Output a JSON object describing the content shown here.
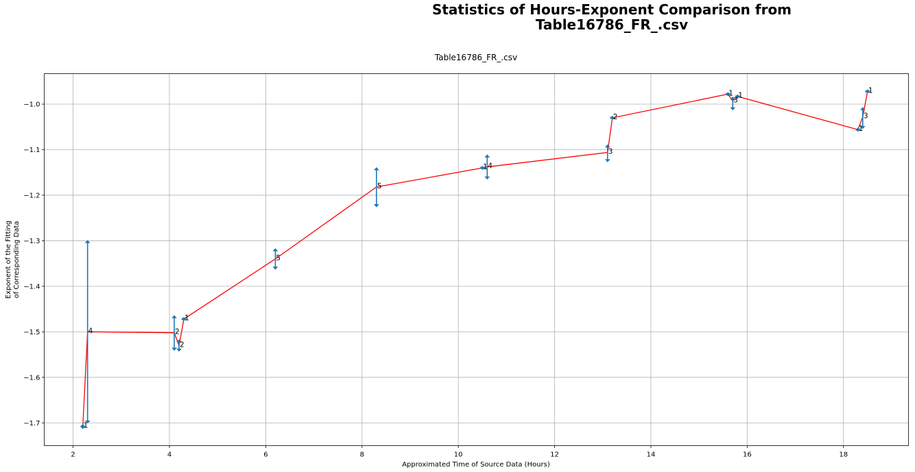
{
  "chart_data": {
    "type": "line",
    "title": "Statistics of Hours-Exponent Comparison from\nTable16786_FR_.csv",
    "subtitle": "Table16786_FR_.csv",
    "xlabel": "Approximated Time of Source Data (Hours)",
    "ylabel": "Exponent of the Fitting\nof Corresponding Data",
    "xlim": [
      1.4,
      19.35
    ],
    "ylim": [
      -1.75,
      -0.933
    ],
    "xticks": [
      2,
      4,
      6,
      8,
      10,
      12,
      14,
      16,
      18
    ],
    "xtick_labels": [
      "2",
      "4",
      "6",
      "8",
      "10",
      "12",
      "14",
      "16",
      "18"
    ],
    "yticks": [
      -1.7,
      -1.6,
      -1.5,
      -1.4,
      -1.3,
      -1.2,
      -1.1,
      -1.0
    ],
    "ytick_labels": [
      "−1.7",
      "−1.6",
      "−1.5",
      "−1.4",
      "−1.3",
      "−1.2",
      "−1.1",
      "−1.0"
    ],
    "grid": true,
    "line_color": "#ff0000",
    "errorbar_color": "#1f77b4",
    "points": [
      {
        "x": 2.2,
        "y": -1.708,
        "yerr_low": -1.712,
        "yerr_high": -1.704,
        "label": "1"
      },
      {
        "x": 2.3,
        "y": -1.5,
        "yerr_low": -1.7,
        "yerr_high": -1.3,
        "label": "4"
      },
      {
        "x": 4.1,
        "y": -1.502,
        "yerr_low": -1.54,
        "yerr_high": -1.465,
        "label": "2"
      },
      {
        "x": 4.2,
        "y": -1.53,
        "yerr_low": -1.542,
        "yerr_high": -1.518,
        "label": "2"
      },
      {
        "x": 4.3,
        "y": -1.472,
        "yerr_low": -1.475,
        "yerr_high": -1.469,
        "label": "1"
      },
      {
        "x": 6.2,
        "y": -1.34,
        "yerr_low": -1.362,
        "yerr_high": -1.318,
        "label": "5"
      },
      {
        "x": 8.3,
        "y": -1.182,
        "yerr_low": -1.225,
        "yerr_high": -1.14,
        "label": "5"
      },
      {
        "x": 10.5,
        "y": -1.14,
        "yerr_low": -1.143,
        "yerr_high": -1.137,
        "label": "1"
      },
      {
        "x": 10.6,
        "y": -1.138,
        "yerr_low": -1.164,
        "yerr_high": -1.112,
        "label": "4"
      },
      {
        "x": 13.1,
        "y": -1.106,
        "yerr_low": -1.126,
        "yerr_high": -1.09,
        "label": "3"
      },
      {
        "x": 13.2,
        "y": -1.03,
        "yerr_low": -1.033,
        "yerr_high": -1.027,
        "label": "2"
      },
      {
        "x": 15.6,
        "y": -0.978,
        "yerr_low": -0.981,
        "yerr_high": -0.975,
        "label": "1"
      },
      {
        "x": 15.7,
        "y": -0.993,
        "yerr_low": -1.012,
        "yerr_high": -0.985,
        "label": "3"
      },
      {
        "x": 15.8,
        "y": -0.983,
        "yerr_low": -0.986,
        "yerr_high": -0.98,
        "label": "1"
      },
      {
        "x": 18.3,
        "y": -1.056,
        "yerr_low": -1.059,
        "yerr_high": -1.053,
        "label": "1"
      },
      {
        "x": 18.4,
        "y": -1.028,
        "yerr_low": -1.053,
        "yerr_high": -1.008,
        "label": "3"
      },
      {
        "x": 18.5,
        "y": -0.972,
        "yerr_low": -0.975,
        "yerr_high": -0.969,
        "label": "1"
      }
    ]
  }
}
